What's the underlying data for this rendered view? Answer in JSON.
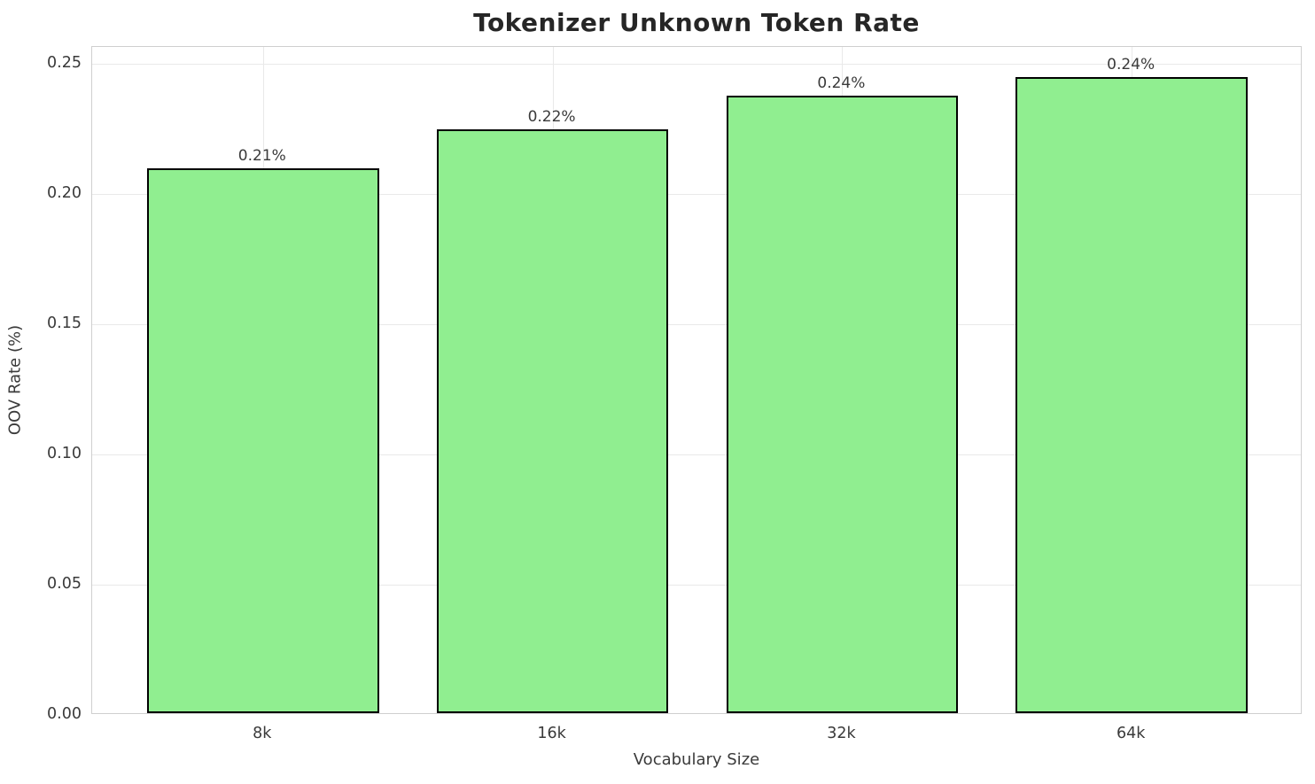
{
  "chart_data": {
    "type": "bar",
    "title": "Tokenizer Unknown Token Rate",
    "xlabel": "Vocabulary Size",
    "ylabel": "OOV Rate (%)",
    "categories": [
      "8k",
      "16k",
      "32k",
      "64k"
    ],
    "values": [
      0.209,
      0.224,
      0.237,
      0.244
    ],
    "bar_labels": [
      "0.21%",
      "0.22%",
      "0.24%",
      "0.24%"
    ],
    "ylim": [
      0,
      0.2564
    ],
    "yticks": [
      0.0,
      0.05,
      0.1,
      0.15,
      0.2,
      0.25
    ],
    "ytick_labels": [
      "0.00",
      "0.05",
      "0.10",
      "0.15",
      "0.20",
      "0.25"
    ],
    "grid": true,
    "legend_position": "none",
    "colors": {
      "bar_fill": "#90EE90",
      "bar_edge": "#000000",
      "grid": "#e9e9e9",
      "spine": "#cfcfcf",
      "text": "#3a3a3a",
      "title": "#262626",
      "background": "#ffffff"
    }
  }
}
